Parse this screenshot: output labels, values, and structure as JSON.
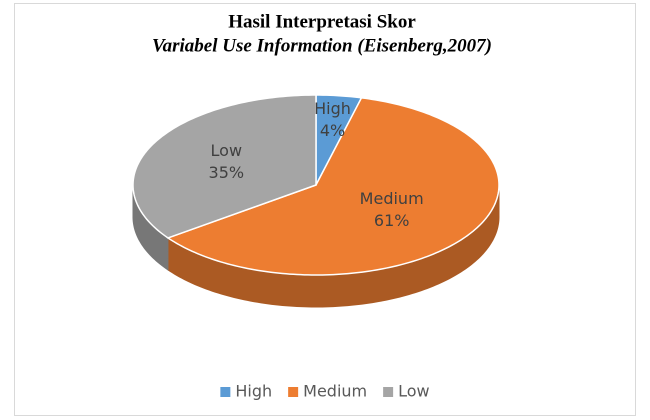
{
  "chart_data": {
    "type": "pie3d",
    "title": "Hasil Interpretasi Skor",
    "subtitle": "Variabel Use Information (Eisenberg,2007)",
    "categories": [
      "High",
      "Medium",
      "Low"
    ],
    "values": [
      4,
      61,
      35
    ],
    "value_labels": [
      "4%",
      "61%",
      "35%"
    ],
    "colors": [
      "#5b9bd5",
      "#ed7d31",
      "#a5a5a5"
    ],
    "legend": "bottom"
  }
}
